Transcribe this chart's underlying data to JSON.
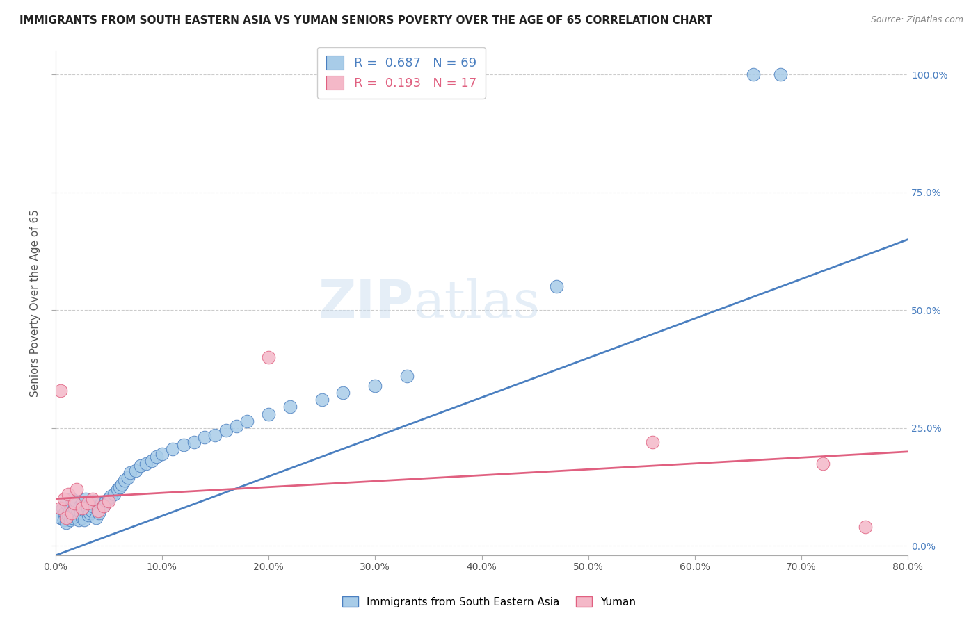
{
  "title": "IMMIGRANTS FROM SOUTH EASTERN ASIA VS YUMAN SENIORS POVERTY OVER THE AGE OF 65 CORRELATION CHART",
  "source": "Source: ZipAtlas.com",
  "ylabel": "Seniors Poverty Over the Age of 65",
  "legend_label1": "Immigrants from South Eastern Asia",
  "legend_label2": "Yuman",
  "R1": 0.687,
  "N1": 69,
  "R2": 0.193,
  "N2": 17,
  "color1": "#a8cce8",
  "color2": "#f4b8c8",
  "line_color1": "#4a7fc0",
  "line_color2": "#e06080",
  "watermark_zip": "ZIP",
  "watermark_atlas": "atlas",
  "xlim": [
    0,
    0.8
  ],
  "ylim": [
    -0.02,
    1.05
  ],
  "xticks": [
    0.0,
    0.1,
    0.2,
    0.3,
    0.4,
    0.5,
    0.6,
    0.7,
    0.8
  ],
  "xtick_labels": [
    "0.0%",
    "10.0%",
    "20.0%",
    "30.0%",
    "40.0%",
    "50.0%",
    "60.0%",
    "70.0%",
    "80.0%"
  ],
  "yticks": [
    0.0,
    0.25,
    0.5,
    0.75,
    1.0
  ],
  "ytick_labels": [
    "0.0%",
    "25.0%",
    "50.0%",
    "75.0%",
    "100.0%"
  ],
  "blue_line_x0": 0.0,
  "blue_line_y0": -0.02,
  "blue_line_x1": 0.8,
  "blue_line_y1": 0.65,
  "pink_line_x0": 0.0,
  "pink_line_y0": 0.1,
  "pink_line_x1": 0.8,
  "pink_line_y1": 0.2,
  "blue_scatter_x": [
    0.005,
    0.007,
    0.008,
    0.009,
    0.01,
    0.01,
    0.012,
    0.013,
    0.014,
    0.015,
    0.015,
    0.016,
    0.017,
    0.018,
    0.019,
    0.02,
    0.021,
    0.022,
    0.023,
    0.024,
    0.025,
    0.025,
    0.026,
    0.027,
    0.028,
    0.03,
    0.031,
    0.032,
    0.033,
    0.034,
    0.035,
    0.036,
    0.038,
    0.04,
    0.041,
    0.043,
    0.045,
    0.047,
    0.05,
    0.052,
    0.055,
    0.058,
    0.06,
    0.062,
    0.065,
    0.068,
    0.07,
    0.075,
    0.08,
    0.085,
    0.09,
    0.095,
    0.1,
    0.11,
    0.12,
    0.13,
    0.14,
    0.15,
    0.16,
    0.17,
    0.18,
    0.2,
    0.22,
    0.25,
    0.27,
    0.3,
    0.33,
    0.655,
    0.68
  ],
  "blue_scatter_y": [
    0.06,
    0.08,
    0.055,
    0.07,
    0.05,
    0.09,
    0.065,
    0.075,
    0.055,
    0.085,
    0.1,
    0.06,
    0.07,
    0.08,
    0.095,
    0.065,
    0.075,
    0.055,
    0.085,
    0.07,
    0.09,
    0.06,
    0.08,
    0.055,
    0.1,
    0.08,
    0.065,
    0.07,
    0.09,
    0.075,
    0.085,
    0.095,
    0.06,
    0.08,
    0.07,
    0.09,
    0.085,
    0.095,
    0.1,
    0.105,
    0.11,
    0.12,
    0.125,
    0.13,
    0.14,
    0.145,
    0.155,
    0.16,
    0.17,
    0.175,
    0.18,
    0.19,
    0.195,
    0.205,
    0.215,
    0.22,
    0.23,
    0.235,
    0.245,
    0.255,
    0.265,
    0.28,
    0.295,
    0.31,
    0.325,
    0.34,
    0.36,
    1.0,
    1.0
  ],
  "blue_outlier_x": [
    0.47
  ],
  "blue_outlier_y": [
    0.55
  ],
  "pink_scatter_x": [
    0.005,
    0.008,
    0.01,
    0.012,
    0.015,
    0.018,
    0.02,
    0.025,
    0.03,
    0.035,
    0.04,
    0.045,
    0.05,
    0.2,
    0.56,
    0.72,
    0.76
  ],
  "pink_scatter_y": [
    0.08,
    0.1,
    0.06,
    0.11,
    0.07,
    0.09,
    0.12,
    0.08,
    0.09,
    0.1,
    0.075,
    0.085,
    0.095,
    0.4,
    0.22,
    0.175,
    0.04
  ],
  "pink_outlier_x": [
    0.005
  ],
  "pink_outlier_y": [
    0.33
  ]
}
